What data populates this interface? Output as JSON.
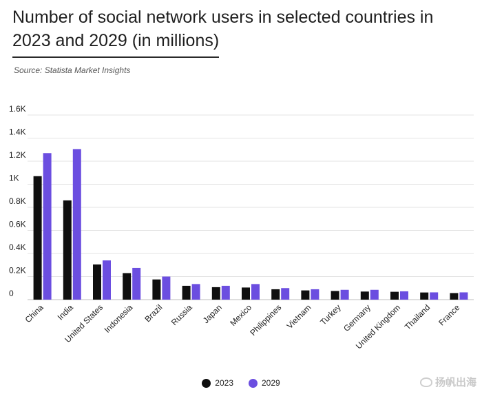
{
  "header": {
    "title": "Number of social network users in selected countries in 2023 and 2029 (in millions)",
    "source": "Source: Statista Market Insights"
  },
  "watermark": {
    "text": "扬帆出海"
  },
  "colors": {
    "series_2023": "#0f0f0f",
    "series_2029": "#6b4ee0",
    "grid": "#e3e3e3"
  },
  "chart_data": {
    "type": "bar",
    "title": "Number of social network users in selected countries in 2023 and 2029 (in millions)",
    "xlabel": "",
    "ylabel": "",
    "ylim": [
      0,
      1600
    ],
    "yticks": [
      0,
      200,
      400,
      600,
      800,
      1000,
      1200,
      1400,
      1600
    ],
    "ytick_labels": [
      "0",
      "0.2K",
      "0.4K",
      "0.6K",
      "0.8K",
      "1K",
      "1.2K",
      "1.4K",
      "1.6K"
    ],
    "grid": true,
    "legend_position": "bottom-center",
    "categories": [
      "China",
      "India",
      "United States",
      "Indonesia",
      "Brazil",
      "Russia",
      "Japan",
      "Mexico",
      "Philippines",
      "Vietnam",
      "Turkey",
      "Germany",
      "United Kingdom",
      "Thailand",
      "France"
    ],
    "series": [
      {
        "name": "2023",
        "values": [
          1070,
          860,
          305,
          230,
          175,
          120,
          108,
          105,
          90,
          80,
          75,
          70,
          68,
          62,
          57
        ]
      },
      {
        "name": "2029",
        "values": [
          1270,
          1305,
          340,
          275,
          200,
          135,
          120,
          135,
          100,
          90,
          85,
          85,
          72,
          63,
          63
        ]
      }
    ]
  }
}
